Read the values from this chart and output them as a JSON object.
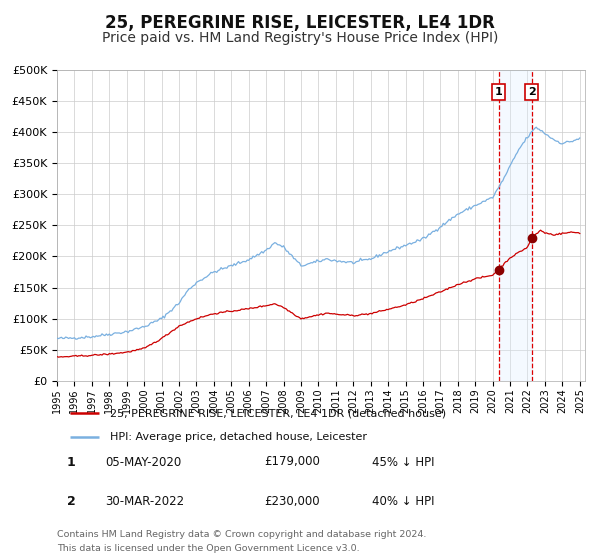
{
  "title": "25, PEREGRINE RISE, LEICESTER, LE4 1DR",
  "subtitle": "Price paid vs. HM Land Registry's House Price Index (HPI)",
  "ylim": [
    0,
    500000
  ],
  "yticks": [
    0,
    50000,
    100000,
    150000,
    200000,
    250000,
    300000,
    350000,
    400000,
    450000,
    500000
  ],
  "ytick_labels": [
    "£0",
    "£50K",
    "£100K",
    "£150K",
    "£200K",
    "£250K",
    "£300K",
    "£350K",
    "£400K",
    "£450K",
    "£500K"
  ],
  "hpi_color": "#7ab0e0",
  "price_color": "#cc0000",
  "marker_color": "#8b0000",
  "shade_color": "#ddeeff",
  "dashed_color": "#dd0000",
  "background_color": "#ffffff",
  "grid_color": "#cccccc",
  "title_fontsize": 12,
  "subtitle_fontsize": 10,
  "t1_year": 2020.338,
  "t2_year": 2022.247,
  "t1_price": 179000,
  "t2_price": 230000,
  "legend_entry1": "25, PEREGRINE RISE, LEICESTER, LE4 1DR (detached house)",
  "legend_entry2": "HPI: Average price, detached house, Leicester",
  "footer1": "Contains HM Land Registry data © Crown copyright and database right 2024.",
  "footer2": "This data is licensed under the Open Government Licence v3.0.",
  "table_row1": [
    "1",
    "05-MAY-2020",
    "£179,000",
    "45% ↓ HPI"
  ],
  "table_row2": [
    "2",
    "30-MAR-2022",
    "£230,000",
    "40% ↓ HPI"
  ],
  "hpi_keypoints": {
    "1995.0": 68000,
    "1996.0": 69000,
    "1997.0": 71000,
    "1998.0": 75000,
    "1999.0": 79000,
    "2000.0": 87000,
    "2001.0": 100000,
    "2002.0": 125000,
    "2002.5": 145000,
    "2003.0": 158000,
    "2004.0": 175000,
    "2005.0": 185000,
    "2006.0": 195000,
    "2007.0": 210000,
    "2007.5": 222000,
    "2008.0": 215000,
    "2009.0": 185000,
    "2010.0": 192000,
    "2010.5": 196000,
    "2011.0": 193000,
    "2012.0": 190000,
    "2013.0": 196000,
    "2014.0": 208000,
    "2015.0": 218000,
    "2016.0": 228000,
    "2017.0": 248000,
    "2018.0": 268000,
    "2019.0": 282000,
    "2020.0": 295000,
    "2020.5": 318000,
    "2021.0": 345000,
    "2021.5": 372000,
    "2022.0": 392000,
    "2022.5": 408000,
    "2023.0": 398000,
    "2023.5": 388000,
    "2024.0": 382000,
    "2024.5": 385000,
    "2025.0": 390000
  },
  "price_keypoints": {
    "1995.0": 38000,
    "1996.0": 39500,
    "1997.0": 41000,
    "1998.0": 43000,
    "1999.0": 46000,
    "2000.0": 52000,
    "2001.0": 68000,
    "2002.0": 88000,
    "2003.0": 100000,
    "2004.0": 108000,
    "2005.0": 112000,
    "2006.0": 116000,
    "2007.0": 121000,
    "2007.5": 124000,
    "2008.0": 118000,
    "2009.0": 100000,
    "2010.0": 106000,
    "2010.5": 109000,
    "2011.0": 107000,
    "2012.0": 105000,
    "2013.0": 108000,
    "2014.0": 115000,
    "2015.0": 122000,
    "2016.0": 132000,
    "2017.0": 143000,
    "2018.0": 155000,
    "2019.0": 164000,
    "2020.0": 170000,
    "2020.338": 179000,
    "2021.0": 198000,
    "2022.0": 215000,
    "2022.247": 230000,
    "2022.75": 242000,
    "2023.0": 238000,
    "2023.5": 235000,
    "2024.0": 237000,
    "2024.5": 239000,
    "2025.0": 238000
  }
}
